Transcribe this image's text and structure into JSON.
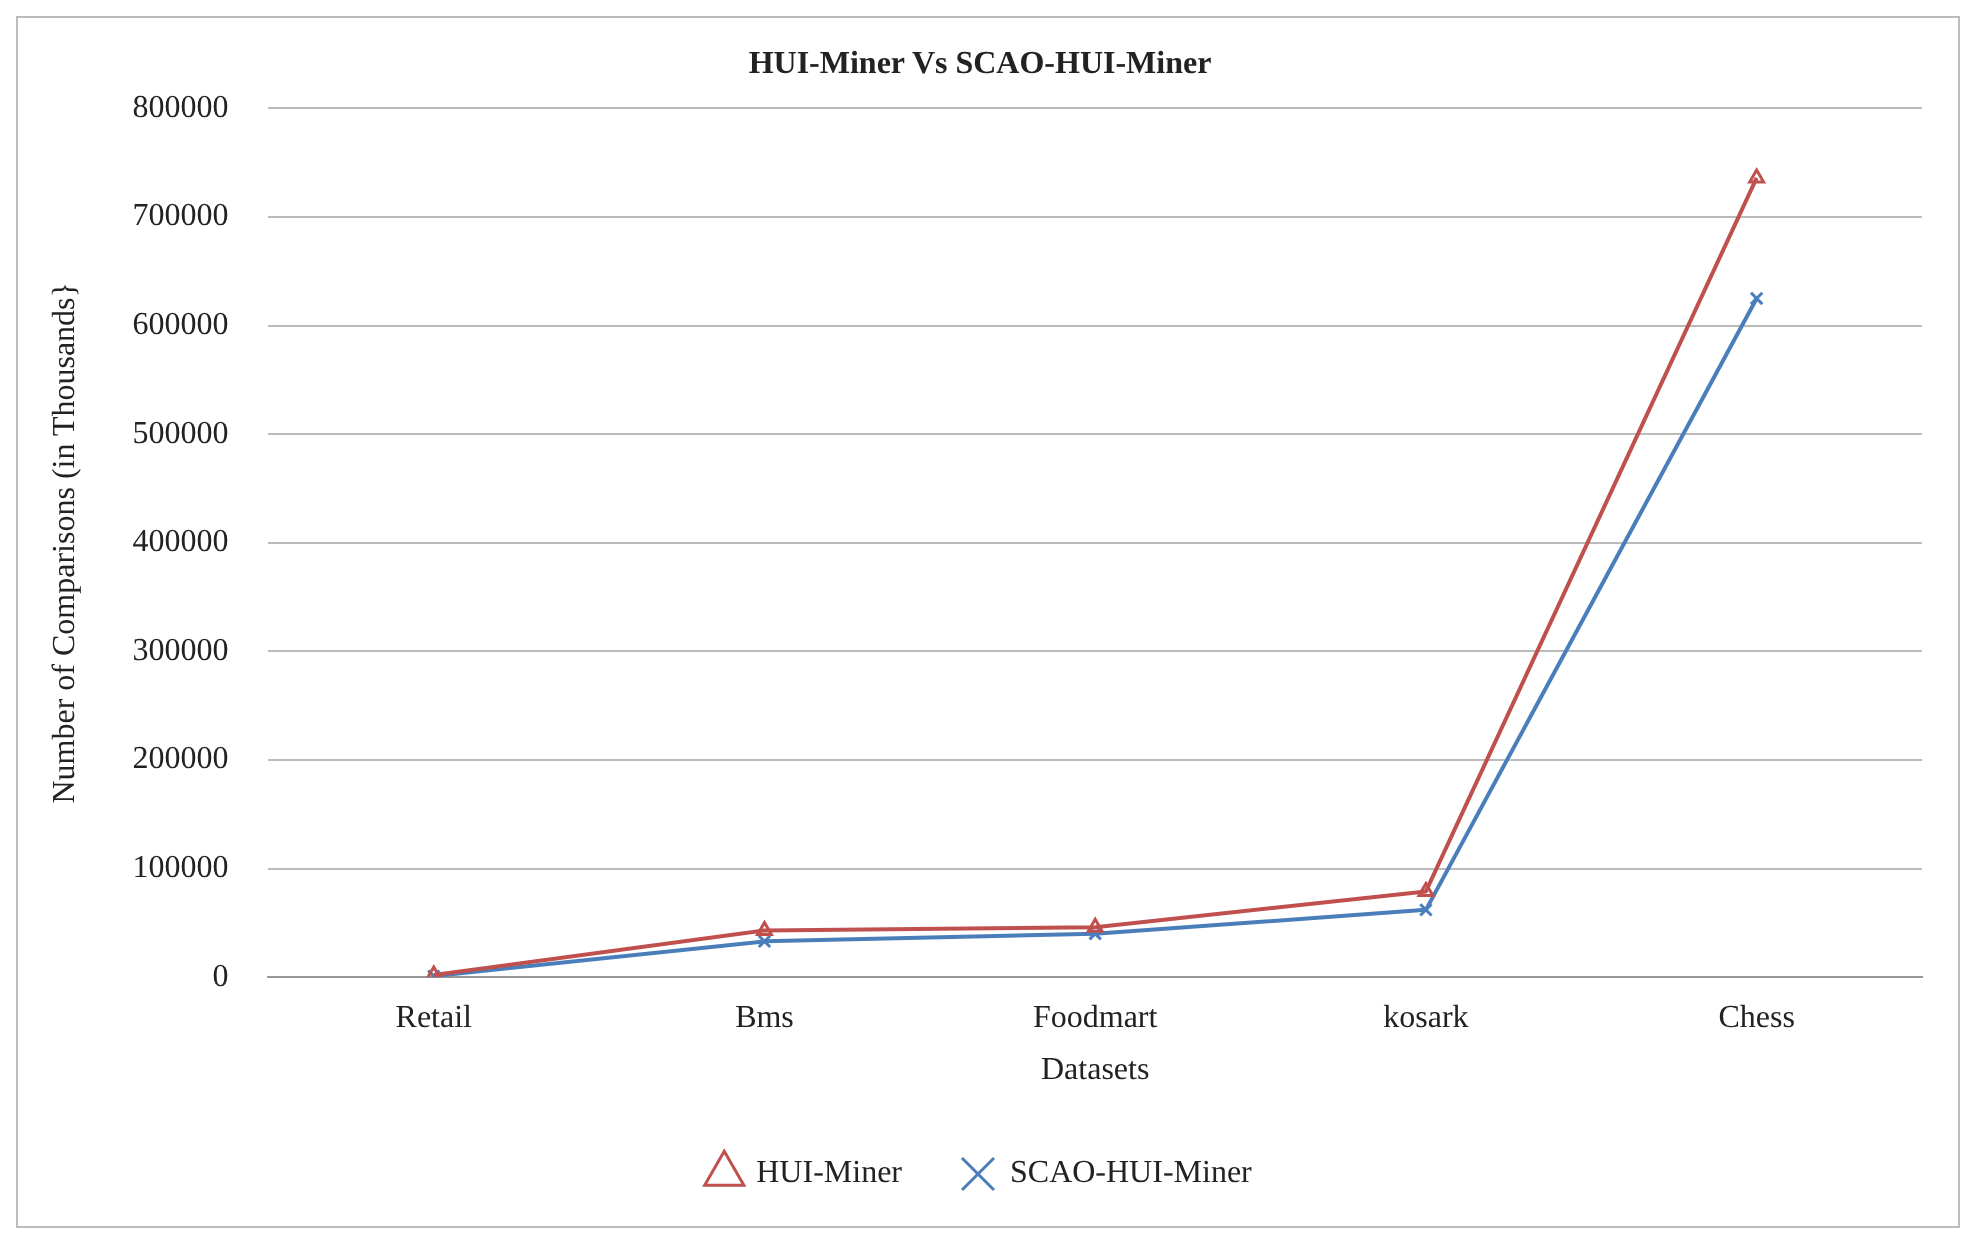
{
  "chart_data": {
    "type": "line",
    "title": "HUI-Miner Vs SCAO-HUI-Miner",
    "xlabel": "Datasets",
    "ylabel": "Number of Comparisons (in Thousands}",
    "categories": [
      "Retail",
      "Bms",
      "Foodmart",
      "kosark",
      "Chess"
    ],
    "series": [
      {
        "name": "HUI-Miner",
        "color": "#c0504d",
        "marker": "triangle",
        "values": [
          2000,
          43000,
          46000,
          79000,
          736000
        ]
      },
      {
        "name": "SCAO-HUI-Miner",
        "color": "#4a7ebb",
        "marker": "cross",
        "values": [
          1000,
          33000,
          40000,
          62000,
          625000
        ]
      }
    ],
    "ylim": [
      0,
      800000
    ],
    "yticks": [
      0,
      100000,
      200000,
      300000,
      400000,
      500000,
      600000,
      700000,
      800000
    ],
    "grid": "y",
    "legend": "bottom"
  }
}
